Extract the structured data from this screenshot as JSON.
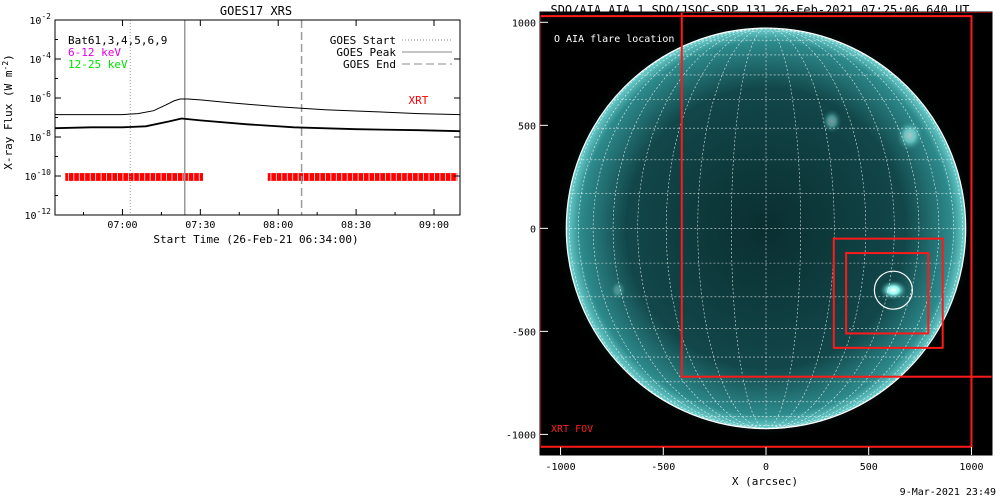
{
  "chart_data": [
    {
      "type": "line",
      "title": "GOES17 XRS",
      "xlabel": "Start Time (26-Feb-21 06:34:00)",
      "ylabel_main": "X-ray Flux (W m",
      "ylabel_sup": "-2",
      "ylabel_close": ")",
      "yscale": "log",
      "xlim": [
        6.567,
        9.167
      ],
      "ylim_exp": [
        -12,
        -2
      ],
      "y_ticks": [
        {
          "base": "10",
          "exp": "-2",
          "v": -2
        },
        {
          "base": "10",
          "exp": "-4",
          "v": -4
        },
        {
          "base": "10",
          "exp": "-6",
          "v": -6
        },
        {
          "base": "10",
          "exp": "-8",
          "v": -8
        },
        {
          "base": "10",
          "exp": "-10",
          "v": -10
        },
        {
          "base": "10",
          "exp": "-12",
          "v": -12
        }
      ],
      "x_ticks": [
        {
          "label": "07:00",
          "v": 7.0
        },
        {
          "label": "07:30",
          "v": 7.5
        },
        {
          "label": "08:00",
          "v": 8.0
        },
        {
          "label": "08:30",
          "v": 8.5
        },
        {
          "label": "09:00",
          "v": 9.0
        }
      ],
      "legend_left": [
        {
          "text": "Bat61,3,4,5,6,9",
          "color": "#000000"
        },
        {
          "text": "6-12 keV",
          "color": "#e000e0"
        },
        {
          "text": "12-25 keV",
          "color": "#00e000"
        }
      ],
      "legend_right": [
        {
          "text": "GOES Start",
          "style": "dotted"
        },
        {
          "text": "GOES Peak",
          "style": "solid"
        },
        {
          "text": "GOES End",
          "style": "dashed"
        }
      ],
      "markers": {
        "start": 7.05,
        "peak": 7.4,
        "end": 8.15
      },
      "series": [
        {
          "name": "",
          "color": "#000000",
          "x": [
            6.567,
            6.7,
            6.85,
            7.0,
            7.1,
            7.2,
            7.28,
            7.33,
            7.37,
            7.42,
            7.5,
            7.7,
            8.0,
            8.3,
            8.6,
            8.9,
            9.167
          ],
          "y": [
            -6.85,
            -6.85,
            -6.85,
            -6.85,
            -6.8,
            -6.65,
            -6.35,
            -6.15,
            -6.05,
            -6.05,
            -6.1,
            -6.25,
            -6.45,
            -6.6,
            -6.7,
            -6.8,
            -6.85
          ]
        },
        {
          "name": "",
          "color": "#000000",
          "x": [
            6.567,
            6.8,
            7.0,
            7.15,
            7.3,
            7.38,
            7.5,
            7.8,
            8.1,
            8.5,
            8.9,
            9.167
          ],
          "y": [
            -7.55,
            -7.5,
            -7.5,
            -7.45,
            -7.2,
            -7.05,
            -7.15,
            -7.35,
            -7.5,
            -7.6,
            -7.65,
            -7.7
          ]
        }
      ],
      "xrt_label": "XRT",
      "xrt_coverage": [
        [
          6.633,
          7.517
        ],
        [
          7.933,
          9.15
        ]
      ]
    },
    {
      "type": "map",
      "title": "SDO/AIA AIA_1 SDO/JSOC-SDP 131 26-Feb-2021 07:25:06.640 UT",
      "xlabel": "X (arcsec)",
      "xlim": [
        -1100,
        1100
      ],
      "ylim": [
        -1100,
        1050
      ],
      "x_ticks": [
        {
          "label": "-1000",
          "v": -1000
        },
        {
          "label": "-500",
          "v": -500
        },
        {
          "label": "0",
          "v": 0
        },
        {
          "label": "500",
          "v": 500
        },
        {
          "label": "1000",
          "v": 1000
        }
      ],
      "y_ticks": [
        {
          "label": "1000",
          "v": 1000
        },
        {
          "label": "500",
          "v": 500
        },
        {
          "label": "0",
          "v": 0
        },
        {
          "label": "-500",
          "v": -500
        },
        {
          "label": "-1000",
          "v": -1000
        }
      ],
      "solar_radius": 972,
      "legend": "O AIA flare location",
      "fov_label": "XRT FOV",
      "flare_location": [
        620,
        -300
      ],
      "fov_boxes": [
        [
          -1100,
          -1060,
          1000,
          1030
        ],
        [
          -410,
          -720,
          1160,
          1050
        ],
        [
          330,
          -580,
          860,
          -50
        ],
        [
          390,
          -510,
          790,
          -120
        ]
      ],
      "generated": "9-Mar-2021 23:49"
    }
  ]
}
